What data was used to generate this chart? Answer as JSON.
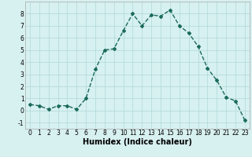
{
  "xlabel": "Humidex (Indice chaleur)",
  "ylabel": "",
  "x": [
    0,
    1,
    2,
    3,
    4,
    5,
    6,
    7,
    8,
    9,
    10,
    11,
    12,
    13,
    14,
    15,
    16,
    17,
    18,
    19,
    20,
    21,
    22,
    23
  ],
  "y": [
    0.5,
    0.4,
    0.1,
    0.4,
    0.4,
    0.1,
    1.0,
    3.4,
    5.0,
    5.1,
    6.6,
    8.0,
    7.0,
    7.9,
    7.8,
    8.3,
    7.0,
    6.4,
    5.3,
    3.5,
    2.5,
    1.1,
    0.8,
    -0.8
  ],
  "line_color": "#1a6b5a",
  "marker": "D",
  "marker_size": 2,
  "bg_color": "#d7f0f0",
  "grid_color": "#b0d8d8",
  "ylim": [
    -1.5,
    9.0
  ],
  "xlim": [
    -0.5,
    23.5
  ],
  "yticks": [
    -1,
    0,
    1,
    2,
    3,
    4,
    5,
    6,
    7,
    8
  ],
  "xticks": [
    0,
    1,
    2,
    3,
    4,
    5,
    6,
    7,
    8,
    9,
    10,
    11,
    12,
    13,
    14,
    15,
    16,
    17,
    18,
    19,
    20,
    21,
    22,
    23
  ],
  "tick_fontsize": 5.5,
  "xlabel_fontsize": 7,
  "line_width": 1.0
}
